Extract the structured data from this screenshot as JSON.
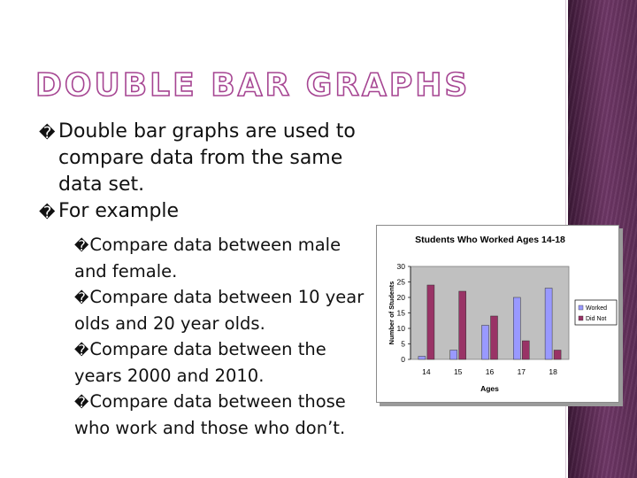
{
  "slide": {
    "title": "DOUBLE BAR GRAPHS",
    "bullet_marker": "�",
    "bullets": [
      {
        "text": "Double bar graphs are used to compare data from the same data set."
      },
      {
        "text": "For example"
      }
    ],
    "sub_bullets": [
      {
        "text": "Compare data between male and female."
      },
      {
        "text": "Compare data between 10 year olds and 20 year olds."
      },
      {
        "text": "Compare data between the years 2000 and 2010."
      },
      {
        "text": "Compare data between those who work and those who don’t."
      }
    ]
  },
  "chart_data": {
    "type": "bar",
    "title": "Students Who Worked Ages 14-18",
    "xlabel": "Ages",
    "ylabel": "Number of Students",
    "categories": [
      "14",
      "15",
      "16",
      "17",
      "18"
    ],
    "series": [
      {
        "name": "Worked",
        "color": "#9999ff",
        "values": [
          1,
          3,
          11,
          20,
          23
        ]
      },
      {
        "name": "Did Not",
        "color": "#993366",
        "values": [
          24,
          22,
          14,
          6,
          3
        ]
      }
    ],
    "ylim": [
      0,
      30
    ],
    "yticks": [
      "0",
      "5",
      "10",
      "15",
      "20",
      "25",
      "30"
    ],
    "plot_background": "#c0c0c0",
    "grid": false,
    "legend": "right"
  }
}
